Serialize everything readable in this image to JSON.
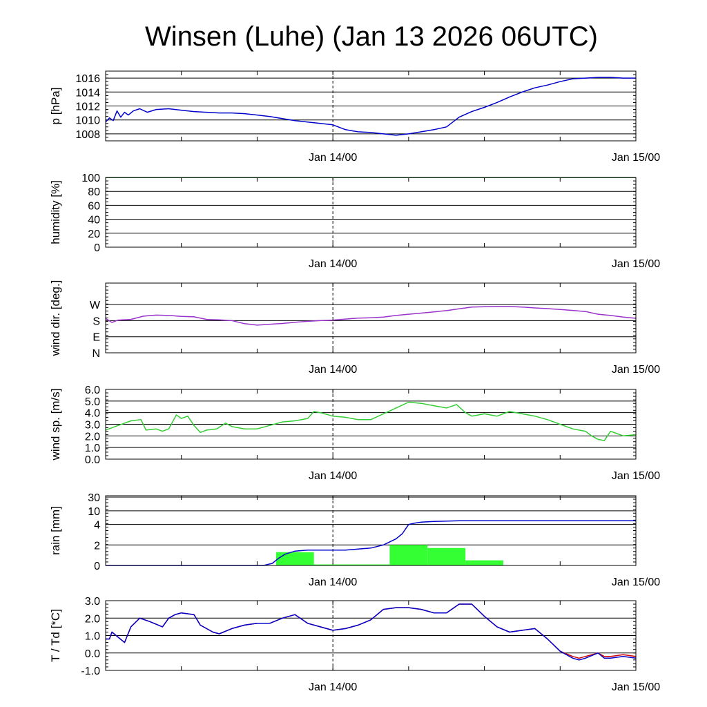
{
  "title": "Winsen (Luhe) (Jan 13 2026 06UTC)",
  "chart_data": [
    {
      "type": "line",
      "ylabel": "p [hPa]",
      "x_range_hours": [
        0,
        42
      ],
      "x_ticks": [
        {
          "hour": 18,
          "label": "Jan 14/00"
        },
        {
          "hour": 42,
          "label": "Jan 15/00"
        }
      ],
      "ylim": [
        1007,
        1017
      ],
      "yticks": [
        "1008",
        "1010",
        "1012",
        "1014",
        "1016"
      ],
      "ytick_values": [
        1008,
        1010,
        1012,
        1014,
        1016
      ],
      "grid": true,
      "series": [
        {
          "color": "#0000cc",
          "x": [
            0,
            0.3,
            0.6,
            0.9,
            1.2,
            1.5,
            1.8,
            2.2,
            2.7,
            3.3,
            4,
            5,
            6,
            7,
            8,
            9,
            10,
            11,
            12,
            13,
            14,
            15,
            16,
            17,
            18,
            19,
            20,
            21,
            22,
            23,
            24,
            25,
            26,
            27,
            28,
            29,
            30,
            31,
            32,
            33,
            34,
            35,
            36,
            37,
            38,
            39,
            40,
            41,
            42
          ],
          "y": [
            1009.7,
            1010.3,
            1009.9,
            1011.3,
            1010.4,
            1011.1,
            1010.7,
            1011.3,
            1011.6,
            1011.1,
            1011.5,
            1011.6,
            1011.4,
            1011.2,
            1011.1,
            1011.0,
            1011.0,
            1010.9,
            1010.7,
            1010.5,
            1010.2,
            1009.9,
            1009.7,
            1009.5,
            1009.3,
            1008.6,
            1008.3,
            1008.2,
            1008.0,
            1007.8,
            1008.0,
            1008.3,
            1008.6,
            1009.0,
            1010.4,
            1011.2,
            1011.8,
            1012.5,
            1013.3,
            1014.0,
            1014.6,
            1015.0,
            1015.5,
            1015.9,
            1016.0,
            1016.1,
            1016.1,
            1016.0,
            1016.0
          ]
        }
      ]
    },
    {
      "type": "line",
      "ylabel": "humidity [%]",
      "x_range_hours": [
        0,
        42
      ],
      "x_ticks": [
        {
          "hour": 18,
          "label": "Jan 14/00"
        },
        {
          "hour": 42,
          "label": "Jan 15/00"
        }
      ],
      "ylim": [
        0,
        100
      ],
      "yticks": [
        "0",
        "20",
        "40",
        "60",
        "80",
        "100"
      ],
      "ytick_values": [
        0,
        20,
        40,
        60,
        80,
        100
      ],
      "grid": true,
      "series": [
        {
          "color": "#2e7d32",
          "x": [
            0,
            42
          ],
          "y": [
            99.8,
            99.8
          ]
        }
      ]
    },
    {
      "type": "line",
      "ylabel": "wind dir. [deg.]",
      "x_range_hours": [
        0,
        42
      ],
      "x_ticks": [
        {
          "hour": 18,
          "label": "Jan 14/00"
        },
        {
          "hour": 42,
          "label": "Jan 15/00"
        }
      ],
      "ylim": [
        0,
        390
      ],
      "yticks": [
        "N",
        "E",
        "S",
        "W"
      ],
      "ytick_values": [
        0,
        90,
        180,
        270
      ],
      "grid": true,
      "series": [
        {
          "color": "#9933cc",
          "x": [
            0,
            0.5,
            1,
            2,
            3,
            4,
            5,
            6,
            7,
            8,
            9,
            10,
            11,
            12,
            13,
            14,
            15,
            16,
            17,
            18,
            19,
            20,
            21,
            22,
            23,
            24,
            25,
            26,
            27,
            28,
            29,
            30,
            31,
            32,
            33,
            34,
            35,
            36,
            37,
            38,
            39,
            40,
            41,
            42
          ],
          "y": [
            192,
            170,
            183,
            187,
            205,
            211,
            209,
            204,
            201,
            187,
            184,
            180,
            163,
            155,
            160,
            164,
            171,
            176,
            180,
            183,
            189,
            194,
            196,
            200,
            209,
            216,
            222,
            229,
            236,
            246,
            256,
            258,
            259,
            259,
            256,
            251,
            247,
            242,
            237,
            231,
            216,
            209,
            200,
            193
          ]
        }
      ]
    },
    {
      "type": "line",
      "ylabel": "wind sp. [m/s]",
      "x_range_hours": [
        0,
        42
      ],
      "x_ticks": [
        {
          "hour": 18,
          "label": "Jan 14/00"
        },
        {
          "hour": 42,
          "label": "Jan 15/00"
        }
      ],
      "ylim": [
        0,
        6
      ],
      "yticks": [
        "0.0",
        "1.0",
        "2.0",
        "3.0",
        "4.0",
        "5.0",
        "6.0"
      ],
      "ytick_values": [
        0,
        1,
        2,
        3,
        4,
        5,
        6
      ],
      "grid": true,
      "series": [
        {
          "color": "#33cc33",
          "x": [
            0,
            1,
            2,
            2.8,
            3.2,
            4,
            4.5,
            5,
            5.6,
            6,
            6.5,
            7,
            7.5,
            8,
            8.8,
            9.5,
            10,
            11,
            12,
            13,
            14,
            15,
            16,
            16.5,
            17,
            18,
            19,
            20,
            21,
            22,
            23,
            24,
            25,
            26,
            27,
            27.8,
            28.5,
            29,
            30,
            31,
            32,
            33,
            34,
            35,
            36,
            37,
            38,
            38.5,
            39,
            39.5,
            40,
            41,
            42
          ],
          "y": [
            2.5,
            2.9,
            3.3,
            3.4,
            2.5,
            2.6,
            2.4,
            2.6,
            3.8,
            3.5,
            3.7,
            2.9,
            2.3,
            2.5,
            2.6,
            3.1,
            2.8,
            2.6,
            2.6,
            2.9,
            3.2,
            3.3,
            3.5,
            4.1,
            4.0,
            3.7,
            3.6,
            3.4,
            3.4,
            3.9,
            4.4,
            4.9,
            4.8,
            4.6,
            4.4,
            4.7,
            4.0,
            3.7,
            3.9,
            3.7,
            4.1,
            3.9,
            3.7,
            3.4,
            3.0,
            2.6,
            2.4,
            2.0,
            1.7,
            1.6,
            2.4,
            2.0,
            2.1
          ]
        }
      ]
    },
    {
      "type": "bar",
      "ylabel": "rain [mm]",
      "x_range_hours": [
        0,
        42
      ],
      "x_ticks": [
        {
          "hour": 18,
          "label": "Jan 14/00"
        },
        {
          "hour": 42,
          "label": "Jan 15/00"
        }
      ],
      "yticks": [
        "0",
        "2",
        "4",
        "10",
        "30"
      ],
      "ytick_values": [
        0,
        2,
        4,
        10,
        30
      ],
      "grid": true,
      "bars_color": "#33ff33",
      "bars": [
        {
          "start": 13.5,
          "end": 16.5,
          "value": 1.3
        },
        {
          "start": 16.5,
          "end": 22.5,
          "value": 0.1
        },
        {
          "start": 22.5,
          "end": 25.5,
          "value": 2.0
        },
        {
          "start": 25.5,
          "end": 28.5,
          "value": 1.7
        },
        {
          "start": 28.5,
          "end": 31.5,
          "value": 0.5
        }
      ],
      "series": [
        {
          "name": "accumulated",
          "color": "#0000cc",
          "x": [
            0,
            12.5,
            13.2,
            13.7,
            14.2,
            15,
            16,
            17,
            18,
            19,
            20,
            21,
            22,
            23,
            23.5,
            24,
            24.5,
            25,
            26,
            27,
            28,
            30,
            32,
            35,
            38,
            42
          ],
          "y": [
            0,
            0,
            0.2,
            0.7,
            1.1,
            1.4,
            1.5,
            1.5,
            1.5,
            1.5,
            1.6,
            1.7,
            2.0,
            2.6,
            3.1,
            4.0,
            4.6,
            5.0,
            5.3,
            5.5,
            5.6,
            5.6,
            5.6,
            5.6,
            5.6,
            5.6
          ]
        }
      ]
    },
    {
      "type": "line",
      "ylabel": "T / Td [*C]",
      "x_range_hours": [
        0,
        42
      ],
      "x_ticks": [
        {
          "hour": 18,
          "label": "Jan 14/00"
        },
        {
          "hour": 42,
          "label": "Jan 15/00"
        }
      ],
      "ylim": [
        -1,
        3
      ],
      "yticks": [
        "-1.0",
        "0.0",
        "1.0",
        "2.0",
        "3.0"
      ],
      "ytick_values": [
        -1,
        0,
        1,
        2,
        3
      ],
      "grid": true,
      "series": [
        {
          "name": "T",
          "color": "#cc0000",
          "x": [
            0,
            0.3,
            0.5,
            1,
            1.5,
            2,
            2.7,
            3.5,
            4.5,
            5,
            5.5,
            6,
            7,
            7.5,
            8.5,
            9,
            10,
            11,
            12,
            13,
            14,
            15,
            16,
            17,
            17.5,
            18,
            19,
            20,
            21,
            22,
            23,
            24,
            25,
            26,
            27,
            28,
            29,
            30,
            31,
            32,
            33,
            34,
            35,
            36,
            37,
            37.5,
            38,
            39,
            39.5,
            40,
            41,
            42
          ],
          "y": [
            0.8,
            0.8,
            1.2,
            0.9,
            0.6,
            1.5,
            2.0,
            1.8,
            1.5,
            2.0,
            2.2,
            2.3,
            2.2,
            1.6,
            1.2,
            1.1,
            1.4,
            1.6,
            1.7,
            1.7,
            2.0,
            2.2,
            1.7,
            1.5,
            1.4,
            1.3,
            1.4,
            1.6,
            1.9,
            2.5,
            2.6,
            2.6,
            2.5,
            2.3,
            2.3,
            2.8,
            2.8,
            2.1,
            1.5,
            1.2,
            1.3,
            1.4,
            0.8,
            0.1,
            -0.2,
            -0.3,
            -0.2,
            0.0,
            -0.2,
            -0.2,
            -0.1,
            -0.2
          ]
        },
        {
          "name": "Td",
          "color": "#0000cc",
          "x": [
            0,
            0.3,
            0.5,
            1,
            1.5,
            2,
            2.7,
            3.5,
            4.5,
            5,
            5.5,
            6,
            7,
            7.5,
            8.5,
            9,
            10,
            11,
            12,
            13,
            14,
            15,
            16,
            17,
            17.5,
            18,
            19,
            20,
            21,
            22,
            23,
            24,
            25,
            26,
            27,
            28,
            29,
            30,
            31,
            32,
            33,
            34,
            35,
            36,
            37,
            37.5,
            38,
            39,
            39.5,
            40,
            41,
            42
          ],
          "y": [
            0.8,
            0.8,
            1.2,
            0.9,
            0.6,
            1.5,
            2.0,
            1.8,
            1.5,
            2.0,
            2.2,
            2.3,
            2.2,
            1.6,
            1.2,
            1.1,
            1.4,
            1.6,
            1.7,
            1.7,
            2.0,
            2.2,
            1.7,
            1.5,
            1.4,
            1.3,
            1.4,
            1.6,
            1.9,
            2.5,
            2.6,
            2.6,
            2.5,
            2.3,
            2.3,
            2.8,
            2.8,
            2.1,
            1.5,
            1.2,
            1.3,
            1.4,
            0.8,
            0.1,
            -0.3,
            -0.4,
            -0.3,
            0.0,
            -0.3,
            -0.3,
            -0.2,
            -0.3
          ]
        }
      ]
    }
  ]
}
